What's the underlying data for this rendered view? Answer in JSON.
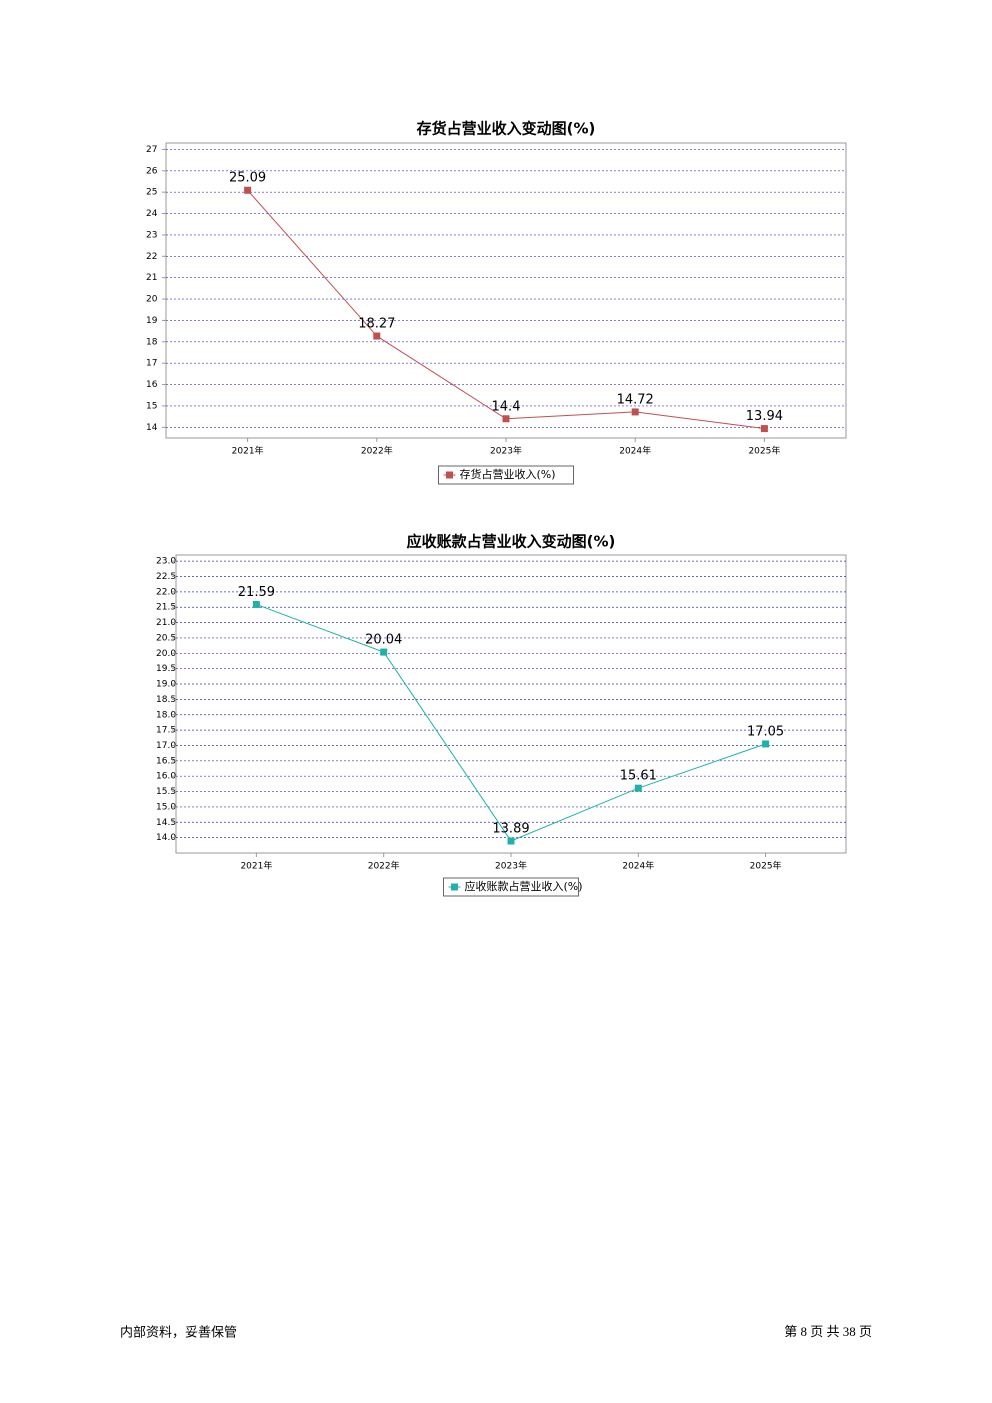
{
  "chart_data": [
    {
      "type": "line",
      "title": "存货占营业收入变动图(%)",
      "categories": [
        "2021年",
        "2022年",
        "2023年",
        "2024年",
        "2025年"
      ],
      "series": [
        {
          "name": "存货占营业收入(%)",
          "color": "#c0504d",
          "values": [
            25.09,
            18.27,
            14.4,
            14.72,
            13.94
          ]
        }
      ],
      "ylim": [
        13.5,
        27.3
      ],
      "yticks": [
        14,
        15,
        16,
        17,
        18,
        19,
        20,
        21,
        22,
        23,
        24,
        25,
        26,
        27
      ],
      "grid": true
    },
    {
      "type": "line",
      "title": "应收账款占营业收入变动图(%)",
      "categories": [
        "2021年",
        "2022年",
        "2023年",
        "2024年",
        "2025年"
      ],
      "series": [
        {
          "name": "应收账款占营业收入(%)",
          "color": "#20b2aa",
          "values": [
            21.59,
            20.04,
            13.89,
            15.61,
            17.05
          ]
        }
      ],
      "ylim": [
        13.5,
        23.2
      ],
      "yticks": [
        {
          "value": 14,
          "label": "14.0"
        },
        14.5,
        {
          "value": 15,
          "label": "15.0"
        },
        15.5,
        {
          "value": 16,
          "label": "16.0"
        },
        16.5,
        {
          "value": 17,
          "label": "17.0"
        },
        17.5,
        {
          "value": 18,
          "label": "18.0"
        },
        18.5,
        {
          "value": 19,
          "label": "19.0"
        },
        19.5,
        {
          "value": 20,
          "label": "20.0"
        },
        20.5,
        {
          "value": 21,
          "label": "21.0"
        },
        21.5,
        {
          "value": 22,
          "label": "22.0"
        },
        22.5,
        {
          "value": 23,
          "label": "23.0"
        }
      ],
      "grid": true
    }
  ],
  "footer": {
    "left": "内部资料，妥善保管",
    "page": "第 8 页 共 38 页"
  }
}
